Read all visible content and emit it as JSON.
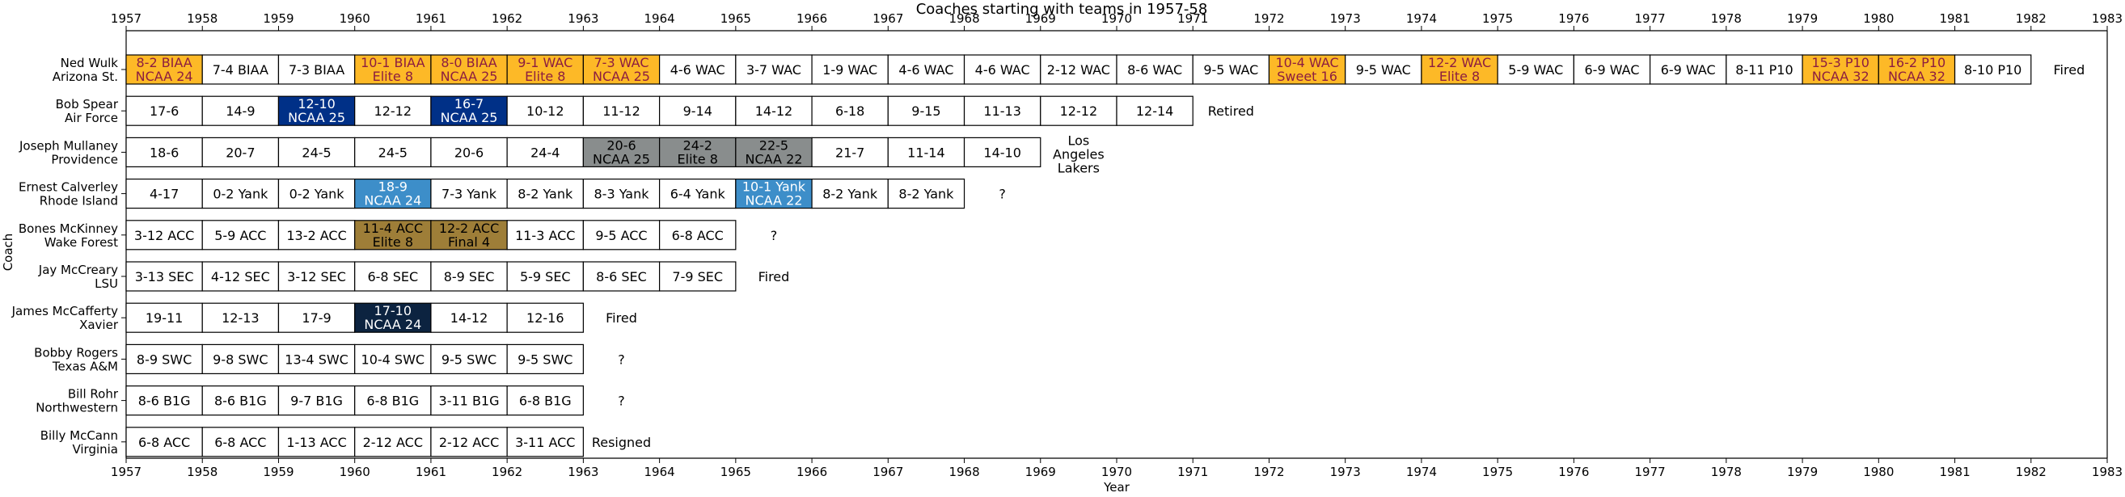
{
  "chart_data": {
    "type": "table",
    "title": "Coaches starting with teams in 1957-58",
    "xlabel": "Year",
    "ylabel": "Coach",
    "xlim": [
      1957,
      1983
    ],
    "xticks": [
      "1957",
      "1958",
      "1959",
      "1960",
      "1961",
      "1962",
      "1963",
      "1964",
      "1965",
      "1966",
      "1967",
      "1968",
      "1969",
      "1970",
      "1971",
      "1972",
      "1973",
      "1974",
      "1975",
      "1976",
      "1977",
      "1978",
      "1979",
      "1980",
      "1981",
      "1982",
      "1983"
    ],
    "colors": {
      "gold": "#fdb927",
      "gold_text": "#8c1d40",
      "navy": "#003087",
      "gray": "#898d8d",
      "light_blue": "#3d8ec9",
      "wf_gold": "#9e7e38",
      "xavier_navy": "#0c2340"
    },
    "coaches": [
      {
        "name": "Ned Wulk",
        "team": "Arizona St.",
        "after": "Fired",
        "seasons": [
          {
            "start": 1957,
            "lines": [
              "8-2 BIAA",
              "NCAA 24"
            ],
            "color": "gold"
          },
          {
            "start": 1958,
            "lines": [
              "7-4 BIAA"
            ],
            "color": "white"
          },
          {
            "start": 1959,
            "lines": [
              "7-3 BIAA"
            ],
            "color": "white"
          },
          {
            "start": 1960,
            "lines": [
              "10-1 BIAA",
              "Elite 8"
            ],
            "color": "gold"
          },
          {
            "start": 1961,
            "lines": [
              "8-0 BIAA",
              "NCAA 25"
            ],
            "color": "gold"
          },
          {
            "start": 1962,
            "lines": [
              "9-1 WAC",
              "Elite 8"
            ],
            "color": "gold"
          },
          {
            "start": 1963,
            "lines": [
              "7-3 WAC",
              "NCAA 25"
            ],
            "color": "gold"
          },
          {
            "start": 1964,
            "lines": [
              "4-6 WAC"
            ],
            "color": "white"
          },
          {
            "start": 1965,
            "lines": [
              "3-7 WAC"
            ],
            "color": "white"
          },
          {
            "start": 1966,
            "lines": [
              "1-9 WAC"
            ],
            "color": "white"
          },
          {
            "start": 1967,
            "lines": [
              "4-6 WAC"
            ],
            "color": "white"
          },
          {
            "start": 1968,
            "lines": [
              "4-6 WAC"
            ],
            "color": "white"
          },
          {
            "start": 1969,
            "lines": [
              "2-12 WAC"
            ],
            "color": "white"
          },
          {
            "start": 1970,
            "lines": [
              "8-6 WAC"
            ],
            "color": "white"
          },
          {
            "start": 1971,
            "lines": [
              "9-5 WAC"
            ],
            "color": "white"
          },
          {
            "start": 1972,
            "lines": [
              "10-4 WAC",
              "Sweet 16"
            ],
            "color": "gold"
          },
          {
            "start": 1973,
            "lines": [
              "9-5 WAC"
            ],
            "color": "white"
          },
          {
            "start": 1974,
            "lines": [
              "12-2 WAC",
              "Elite 8"
            ],
            "color": "gold"
          },
          {
            "start": 1975,
            "lines": [
              "5-9 WAC"
            ],
            "color": "white"
          },
          {
            "start": 1976,
            "lines": [
              "6-9 WAC"
            ],
            "color": "white"
          },
          {
            "start": 1977,
            "lines": [
              "6-9 WAC"
            ],
            "color": "white"
          },
          {
            "start": 1978,
            "lines": [
              "8-11 P10"
            ],
            "color": "white"
          },
          {
            "start": 1979,
            "lines": [
              "15-3 P10",
              "NCAA 32"
            ],
            "color": "gold"
          },
          {
            "start": 1980,
            "lines": [
              "16-2 P10",
              "NCAA 32"
            ],
            "color": "gold"
          },
          {
            "start": 1981,
            "lines": [
              "8-10 P10"
            ],
            "color": "white"
          }
        ]
      },
      {
        "name": "Bob Spear",
        "team": "Air Force",
        "after": "Retired",
        "seasons": [
          {
            "start": 1957,
            "lines": [
              "17-6"
            ],
            "color": "white"
          },
          {
            "start": 1958,
            "lines": [
              "14-9"
            ],
            "color": "white"
          },
          {
            "start": 1959,
            "lines": [
              "12-10",
              "NCAA 25"
            ],
            "color": "navy"
          },
          {
            "start": 1960,
            "lines": [
              "12-12"
            ],
            "color": "white"
          },
          {
            "start": 1961,
            "lines": [
              "16-7",
              "NCAA 25"
            ],
            "color": "navy"
          },
          {
            "start": 1962,
            "lines": [
              "10-12"
            ],
            "color": "white"
          },
          {
            "start": 1963,
            "lines": [
              "11-12"
            ],
            "color": "white"
          },
          {
            "start": 1964,
            "lines": [
              "9-14"
            ],
            "color": "white"
          },
          {
            "start": 1965,
            "lines": [
              "14-12"
            ],
            "color": "white"
          },
          {
            "start": 1966,
            "lines": [
              "6-18"
            ],
            "color": "white"
          },
          {
            "start": 1967,
            "lines": [
              "9-15"
            ],
            "color": "white"
          },
          {
            "start": 1968,
            "lines": [
              "11-13"
            ],
            "color": "white"
          },
          {
            "start": 1969,
            "lines": [
              "12-12"
            ],
            "color": "white"
          },
          {
            "start": 1970,
            "lines": [
              "12-14"
            ],
            "color": "white"
          }
        ]
      },
      {
        "name": "Joseph Mullaney",
        "team": "Providence",
        "after": "Los\nAngeles\nLakers",
        "seasons": [
          {
            "start": 1957,
            "lines": [
              "18-6"
            ],
            "color": "white"
          },
          {
            "start": 1958,
            "lines": [
              "20-7"
            ],
            "color": "white"
          },
          {
            "start": 1959,
            "lines": [
              "24-5"
            ],
            "color": "white"
          },
          {
            "start": 1960,
            "lines": [
              "24-5"
            ],
            "color": "white"
          },
          {
            "start": 1961,
            "lines": [
              "20-6"
            ],
            "color": "white"
          },
          {
            "start": 1962,
            "lines": [
              "24-4"
            ],
            "color": "white"
          },
          {
            "start": 1963,
            "lines": [
              "20-6",
              "NCAA 25"
            ],
            "color": "gray"
          },
          {
            "start": 1964,
            "lines": [
              "24-2",
              "Elite 8"
            ],
            "color": "gray"
          },
          {
            "start": 1965,
            "lines": [
              "22-5",
              "NCAA 22"
            ],
            "color": "gray"
          },
          {
            "start": 1966,
            "lines": [
              "21-7"
            ],
            "color": "white"
          },
          {
            "start": 1967,
            "lines": [
              "11-14"
            ],
            "color": "white"
          },
          {
            "start": 1968,
            "lines": [
              "14-10"
            ],
            "color": "white"
          }
        ]
      },
      {
        "name": "Ernest Calverley",
        "team": "Rhode Island",
        "after": "?",
        "seasons": [
          {
            "start": 1957,
            "lines": [
              "4-17"
            ],
            "color": "white"
          },
          {
            "start": 1958,
            "lines": [
              "0-2 Yank"
            ],
            "color": "white"
          },
          {
            "start": 1959,
            "lines": [
              "0-2 Yank"
            ],
            "color": "white"
          },
          {
            "start": 1960,
            "lines": [
              "18-9",
              "NCAA 24"
            ],
            "color": "light_blue"
          },
          {
            "start": 1961,
            "lines": [
              "7-3 Yank"
            ],
            "color": "white"
          },
          {
            "start": 1962,
            "lines": [
              "8-2 Yank"
            ],
            "color": "white"
          },
          {
            "start": 1963,
            "lines": [
              "8-3 Yank"
            ],
            "color": "white"
          },
          {
            "start": 1964,
            "lines": [
              "6-4 Yank"
            ],
            "color": "white"
          },
          {
            "start": 1965,
            "lines": [
              "10-1 Yank",
              "NCAA 22"
            ],
            "color": "light_blue"
          },
          {
            "start": 1966,
            "lines": [
              "8-2 Yank"
            ],
            "color": "white"
          },
          {
            "start": 1967,
            "lines": [
              "8-2 Yank"
            ],
            "color": "white"
          }
        ]
      },
      {
        "name": "Bones McKinney",
        "team": "Wake Forest",
        "after": "?",
        "seasons": [
          {
            "start": 1957,
            "lines": [
              "3-12 ACC"
            ],
            "color": "white"
          },
          {
            "start": 1958,
            "lines": [
              "5-9 ACC"
            ],
            "color": "white"
          },
          {
            "start": 1959,
            "lines": [
              "13-2 ACC"
            ],
            "color": "white"
          },
          {
            "start": 1960,
            "lines": [
              "11-4 ACC",
              "Elite 8"
            ],
            "color": "wf_gold"
          },
          {
            "start": 1961,
            "lines": [
              "12-2 ACC",
              "Final 4"
            ],
            "color": "wf_gold"
          },
          {
            "start": 1962,
            "lines": [
              "11-3 ACC"
            ],
            "color": "white"
          },
          {
            "start": 1963,
            "lines": [
              "9-5 ACC"
            ],
            "color": "white"
          },
          {
            "start": 1964,
            "lines": [
              "6-8 ACC"
            ],
            "color": "white"
          }
        ]
      },
      {
        "name": "Jay McCreary",
        "team": "LSU",
        "after": "Fired",
        "seasons": [
          {
            "start": 1957,
            "lines": [
              "3-13 SEC"
            ],
            "color": "white"
          },
          {
            "start": 1958,
            "lines": [
              "4-12 SEC"
            ],
            "color": "white"
          },
          {
            "start": 1959,
            "lines": [
              "3-12 SEC"
            ],
            "color": "white"
          },
          {
            "start": 1960,
            "lines": [
              "6-8 SEC"
            ],
            "color": "white"
          },
          {
            "start": 1961,
            "lines": [
              "8-9 SEC"
            ],
            "color": "white"
          },
          {
            "start": 1962,
            "lines": [
              "5-9 SEC"
            ],
            "color": "white"
          },
          {
            "start": 1963,
            "lines": [
              "8-6 SEC"
            ],
            "color": "white"
          },
          {
            "start": 1964,
            "lines": [
              "7-9 SEC"
            ],
            "color": "white"
          }
        ]
      },
      {
        "name": "James McCafferty",
        "team": "Xavier",
        "after": "Fired",
        "seasons": [
          {
            "start": 1957,
            "lines": [
              "19-11"
            ],
            "color": "white"
          },
          {
            "start": 1958,
            "lines": [
              "12-13"
            ],
            "color": "white"
          },
          {
            "start": 1959,
            "lines": [
              "17-9"
            ],
            "color": "white"
          },
          {
            "start": 1960,
            "lines": [
              "17-10",
              "NCAA 24"
            ],
            "color": "xavier_navy"
          },
          {
            "start": 1961,
            "lines": [
              "14-12"
            ],
            "color": "white"
          },
          {
            "start": 1962,
            "lines": [
              "12-16"
            ],
            "color": "white"
          }
        ]
      },
      {
        "name": "Bobby Rogers",
        "team": "Texas A&M",
        "after": "?",
        "seasons": [
          {
            "start": 1957,
            "lines": [
              "8-9 SWC"
            ],
            "color": "white"
          },
          {
            "start": 1958,
            "lines": [
              "9-8 SWC"
            ],
            "color": "white"
          },
          {
            "start": 1959,
            "lines": [
              "13-4 SWC"
            ],
            "color": "white"
          },
          {
            "start": 1960,
            "lines": [
              "10-4 SWC"
            ],
            "color": "white"
          },
          {
            "start": 1961,
            "lines": [
              "9-5 SWC"
            ],
            "color": "white"
          },
          {
            "start": 1962,
            "lines": [
              "9-5 SWC"
            ],
            "color": "white"
          }
        ]
      },
      {
        "name": "Bill Rohr",
        "team": "Northwestern",
        "after": "?",
        "seasons": [
          {
            "start": 1957,
            "lines": [
              "8-6 B1G"
            ],
            "color": "white"
          },
          {
            "start": 1958,
            "lines": [
              "8-6 B1G"
            ],
            "color": "white"
          },
          {
            "start": 1959,
            "lines": [
              "9-7 B1G"
            ],
            "color": "white"
          },
          {
            "start": 1960,
            "lines": [
              "6-8 B1G"
            ],
            "color": "white"
          },
          {
            "start": 1961,
            "lines": [
              "3-11 B1G"
            ],
            "color": "white"
          },
          {
            "start": 1962,
            "lines": [
              "6-8 B1G"
            ],
            "color": "white"
          }
        ]
      },
      {
        "name": "Billy McCann",
        "team": "Virginia",
        "after": "Resigned",
        "seasons": [
          {
            "start": 1957,
            "lines": [
              "6-8 ACC"
            ],
            "color": "white"
          },
          {
            "start": 1958,
            "lines": [
              "6-8 ACC"
            ],
            "color": "white"
          },
          {
            "start": 1959,
            "lines": [
              "1-13 ACC"
            ],
            "color": "white"
          },
          {
            "start": 1960,
            "lines": [
              "2-12 ACC"
            ],
            "color": "white"
          },
          {
            "start": 1961,
            "lines": [
              "2-12 ACC"
            ],
            "color": "white"
          },
          {
            "start": 1962,
            "lines": [
              "3-11 ACC"
            ],
            "color": "white"
          }
        ]
      }
    ]
  }
}
